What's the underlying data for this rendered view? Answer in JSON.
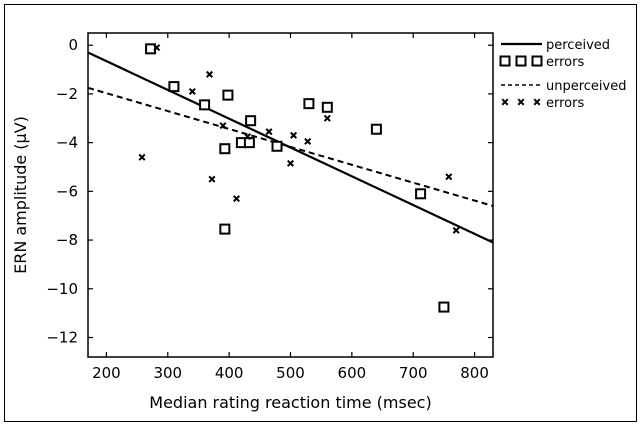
{
  "chart_data": {
    "type": "scatter",
    "title": "",
    "xlabel": "Median rating reaction time (msec)",
    "ylabel": "ERN amplitude (µV)",
    "xlim": [
      170,
      830
    ],
    "ylim": [
      -12.8,
      0.5
    ],
    "xticks": [
      200,
      300,
      400,
      500,
      600,
      700,
      800
    ],
    "yticks": [
      0,
      -2,
      -4,
      -6,
      -8,
      -10,
      -12
    ],
    "xtick_labels": [
      "200",
      "300",
      "400",
      "500",
      "600",
      "700",
      "800"
    ],
    "ytick_labels": [
      "0",
      "−2",
      "−4",
      "−6",
      "−8",
      "−10",
      "−12"
    ],
    "grid": false,
    "legend_position": "outside-right-top",
    "series": [
      {
        "name": "perceived errors",
        "legend_lines": [
          "perceived",
          "errors"
        ],
        "marker": "open-square",
        "line_style": "solid",
        "points": [
          [
            272,
            -0.15
          ],
          [
            310,
            -1.7
          ],
          [
            360,
            -2.45
          ],
          [
            393,
            -4.25
          ],
          [
            393,
            -7.55
          ],
          [
            398,
            -2.05
          ],
          [
            420,
            -4.0
          ],
          [
            433,
            -4.0
          ],
          [
            435,
            -3.1
          ],
          [
            478,
            -4.15
          ],
          [
            530,
            -2.4
          ],
          [
            560,
            -2.55
          ],
          [
            640,
            -3.45
          ],
          [
            712,
            -6.1
          ],
          [
            750,
            -10.75
          ]
        ],
        "fit": {
          "x": [
            170,
            830
          ],
          "y": [
            -0.3,
            -8.1
          ]
        }
      },
      {
        "name": "unperceived errors",
        "legend_lines": [
          "unperceived",
          "errors"
        ],
        "marker": "x",
        "line_style": "dashed",
        "points": [
          [
            258,
            -4.6
          ],
          [
            282,
            -0.1
          ],
          [
            340,
            -1.9
          ],
          [
            368,
            -1.2
          ],
          [
            372,
            -5.5
          ],
          [
            390,
            -3.3
          ],
          [
            412,
            -6.3
          ],
          [
            430,
            -3.75
          ],
          [
            465,
            -3.55
          ],
          [
            500,
            -4.85
          ],
          [
            505,
            -3.7
          ],
          [
            528,
            -3.95
          ],
          [
            560,
            -3.0
          ],
          [
            758,
            -5.4
          ],
          [
            770,
            -7.6
          ]
        ],
        "fit": {
          "x": [
            170,
            830
          ],
          "y": [
            -1.75,
            -6.6
          ]
        }
      }
    ]
  }
}
